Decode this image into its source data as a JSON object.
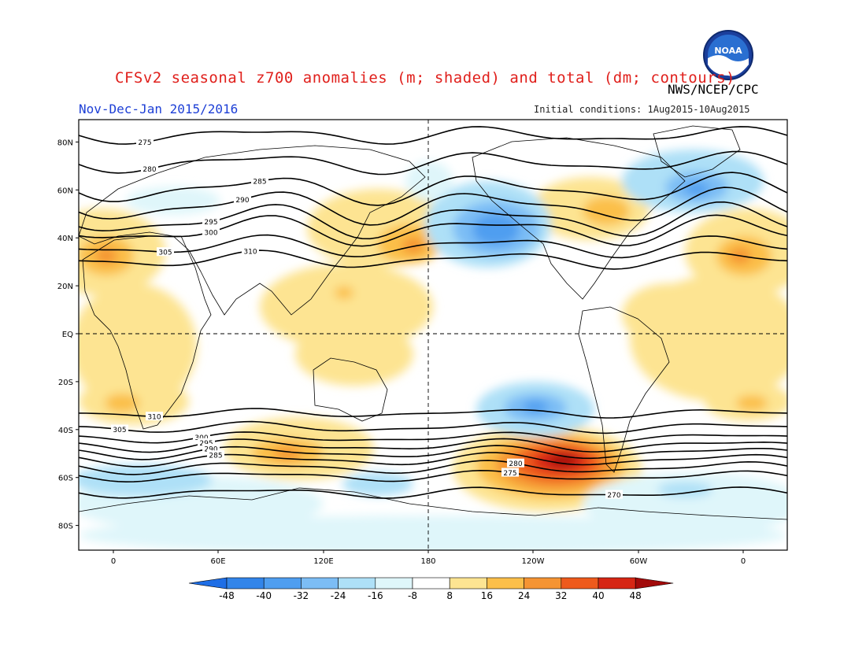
{
  "header": {
    "title": "CFSv2 seasonal z700 anomalies (m; shaded) and total (dm; contours)",
    "agency": "NWS/NCEP/CPC",
    "period": "Nov-Dec-Jan 2015/2016",
    "initial_conditions": "Initial conditions: 1Aug2015-10Aug2015",
    "logo_text": "NOAA"
  },
  "map": {
    "projection": "cylindrical equidistant",
    "center_longitude": 180,
    "lat_labels": [
      "80N",
      "60N",
      "40N",
      "20N",
      "EQ",
      "20S",
      "40S",
      "60S",
      "80S"
    ],
    "lon_labels": [
      "0",
      "60E",
      "120E",
      "180",
      "120W",
      "60W",
      "0"
    ],
    "reference_lines": [
      "EQ",
      "180"
    ]
  },
  "contours": {
    "units": "dm",
    "labels": [
      "275",
      "280",
      "285",
      "290",
      "295",
      "300",
      "305",
      "310",
      "310",
      "305",
      "300",
      "295",
      "290",
      "285",
      "280",
      "275",
      "270"
    ]
  },
  "colorbar": {
    "units": "m",
    "tick_labels": [
      "-48",
      "-40",
      "-32",
      "-24",
      "-16",
      "-8",
      "8",
      "16",
      "24",
      "32",
      "40",
      "48"
    ],
    "colors": [
      "#1e6ee6",
      "#3285ea",
      "#4f9ef0",
      "#7cbdf5",
      "#aee0f7",
      "#dff6fa",
      "#ffffff",
      "#fde492",
      "#fbbf4a",
      "#f59433",
      "#ee5a1c",
      "#d62614",
      "#a20a0a"
    ]
  }
}
